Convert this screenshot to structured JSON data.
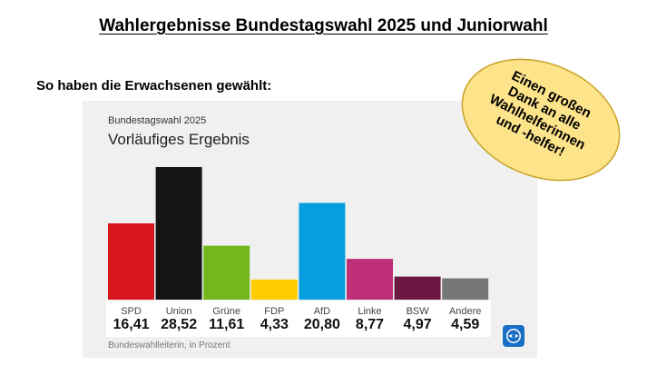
{
  "page": {
    "title": "Wahlergebnisse Bundestagswahl 2025 und Juniorwahl",
    "subheading": "So haben die Erwachsenen gewählt:"
  },
  "bubble": {
    "text": "Einen großen Dank an alle Wahlhelferinnen und -helfer!",
    "fill": "#fde38a",
    "stroke": "#c9a227"
  },
  "chart_data": {
    "type": "bar",
    "kicker": "Bundestagswahl 2025",
    "title": "Vorläufiges Ergebnis",
    "source": "Bundeswahlleiterin, in Prozent",
    "categories": [
      "SPD",
      "Union",
      "Grüne",
      "FDP",
      "AfD",
      "Linke",
      "BSW",
      "Andere"
    ],
    "values": [
      16.41,
      28.52,
      11.61,
      4.33,
      20.8,
      8.77,
      4.97,
      4.59
    ],
    "value_labels": [
      "16,41",
      "28,52",
      "11,61",
      "4,33",
      "20,80",
      "8,77",
      "4,97",
      "4,59"
    ],
    "colors": [
      "#d7161d",
      "#141414",
      "#74b71c",
      "#ffcc00",
      "#079ee0",
      "#be2f77",
      "#6d1743",
      "#777777"
    ],
    "grid": false,
    "legend": "none",
    "logo": "tagesschau-icon"
  }
}
